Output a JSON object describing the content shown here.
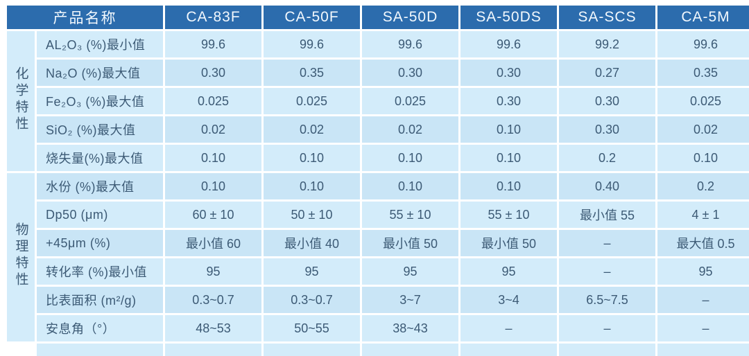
{
  "chart_data": {
    "type": "table",
    "corner_header": "产品名称",
    "columns": [
      "CA-83F",
      "CA-50F",
      "SA-50D",
      "SA-50DS",
      "SA-SCS",
      "CA-5M"
    ],
    "groups": [
      {
        "name": "化学特性",
        "rows": [
          {
            "label": "AL₂O₃ (%)最小值",
            "values": [
              "99.6",
              "99.6",
              "99.6",
              "99.6",
              "99.2",
              "99.6"
            ]
          },
          {
            "label": "Na₂O (%)最大值",
            "values": [
              "0.30",
              "0.35",
              "0.30",
              "0.30",
              "0.27",
              "0.35"
            ]
          },
          {
            "label": "Fe₂O₃ (%)最大值",
            "values": [
              "0.025",
              "0.025",
              "0.025",
              "0.30",
              "0.30",
              "0.025"
            ]
          },
          {
            "label": "SiO₂ (%)最大值",
            "values": [
              "0.02",
              "0.02",
              "0.02",
              "0.10",
              "0.30",
              "0.02"
            ]
          },
          {
            "label": "烧失量(%)最大值",
            "values": [
              "0.10",
              "0.10",
              "0.10",
              "0.10",
              "0.2",
              "0.10"
            ]
          }
        ]
      },
      {
        "name": "物理特性",
        "rows": [
          {
            "label": "水份 (%)最大值",
            "values": [
              "0.10",
              "0.10",
              "0.10",
              "0.10",
              "0.40",
              "0.2"
            ]
          },
          {
            "label": "Dp50 (μm)",
            "values": [
              "60 ± 10",
              "50 ± 10",
              "55 ± 10",
              "55 ± 10",
              "最小值 55",
              "4 ± 1"
            ]
          },
          {
            "label": "+45μm (%)",
            "values": [
              "最小值 60",
              "最小值 40",
              "最小值 50",
              "最小值 50",
              "–",
              "最大值 0.5"
            ]
          },
          {
            "label": "转化率 (%)最小值",
            "values": [
              "95",
              "95",
              "95",
              "95",
              "–",
              "95"
            ]
          },
          {
            "label": "比表面积 (m²/g)",
            "values": [
              "0.3~0.7",
              "0.3~0.7",
              "3~7",
              "3~4",
              "6.5~7.5",
              "–"
            ]
          },
          {
            "label": "安息角（°）",
            "values": [
              "48~53",
              "50~55",
              "38~43",
              "–",
              "–",
              "–"
            ]
          }
        ]
      }
    ]
  },
  "colors": {
    "header_bg": "#2c6cad",
    "header_text": "#f2f8fd",
    "cell_bg": "#d3ecfa",
    "cell_bg_alt": "#c9e5f6",
    "body_text": "#3c5a75",
    "grid": "#ffffff",
    "page_bg": "#ffffff"
  }
}
